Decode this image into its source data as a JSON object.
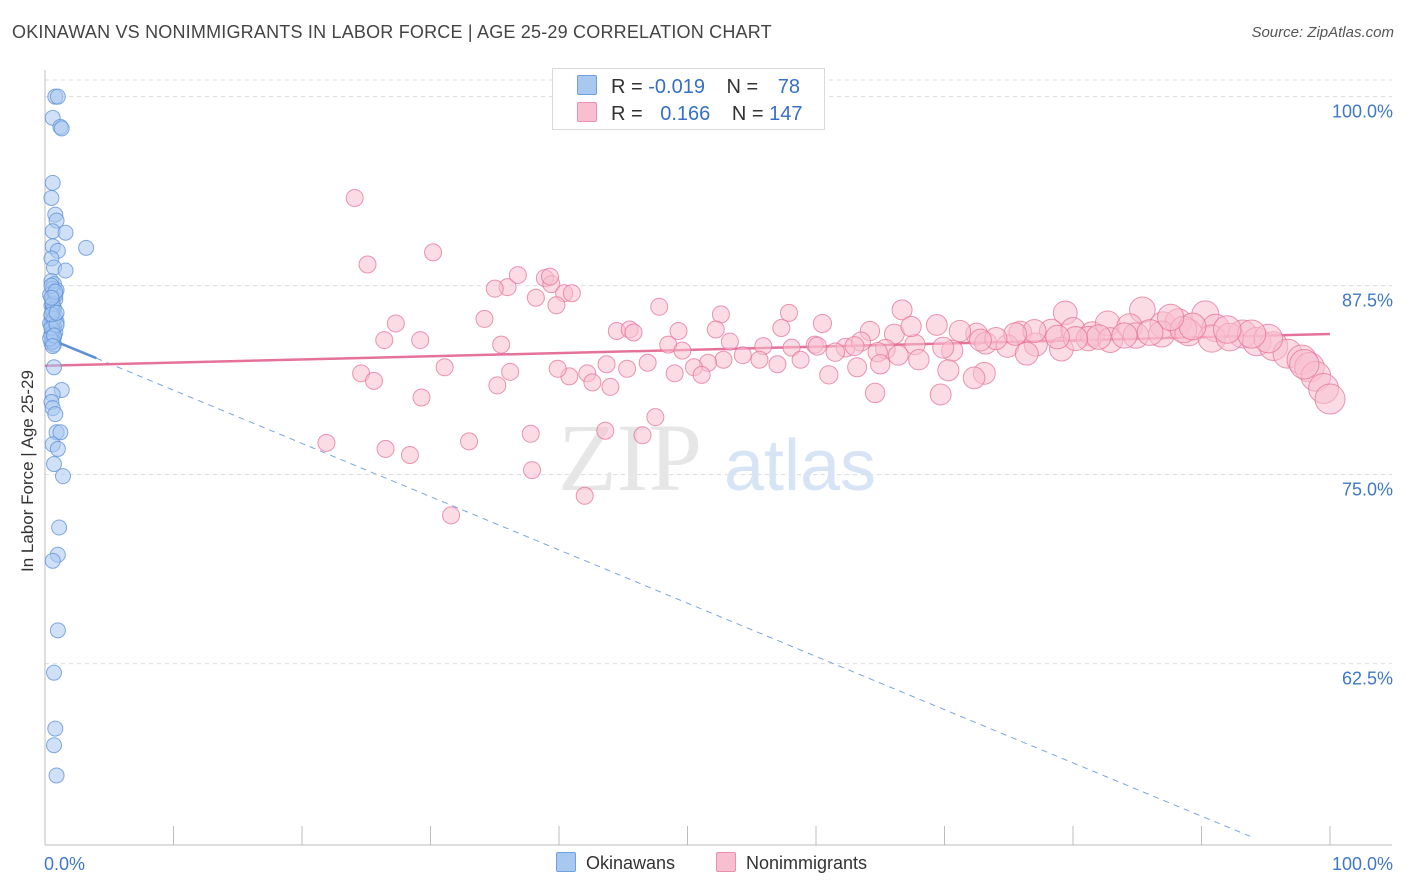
{
  "title": "OKINAWAN VS NONIMMIGRANTS IN LABOR FORCE | AGE 25-29 CORRELATION CHART",
  "source": "Source: ZipAtlas.com",
  "watermark": {
    "zip": "ZIP",
    "atlas": "atlas"
  },
  "legend_top": {
    "r_label": "R =",
    "n_label": "N =",
    "rows": [
      {
        "name": "Okinawans",
        "r": "-0.019",
        "n": "78",
        "color": "#a9c8f0",
        "border": "#6fa0e0"
      },
      {
        "name": "Nonimmigrants",
        "r": "0.166",
        "n": "147",
        "color": "#f7bfd0",
        "border": "#e890ad"
      }
    ]
  },
  "bottom_legend": [
    {
      "label": "Okinawans",
      "color": "#a9c8f0",
      "border": "#6fa0e0"
    },
    {
      "label": "Nonimmigrants",
      "color": "#f7bfd0",
      "border": "#e890ad"
    }
  ],
  "chart_data": {
    "type": "scatter",
    "title": "OKINAWAN VS NONIMMIGRANTS IN LABOR FORCE | AGE 25-29 CORRELATION CHART",
    "xlabel": "",
    "ylabel": "In Labor Force | Age 25-29",
    "xlim": [
      0,
      100
    ],
    "ylim": [
      50.5,
      101.5
    ],
    "x_tick_labels": [
      "0.0%",
      "100.0%"
    ],
    "y_ticks": [
      100.0,
      87.5,
      75.0,
      62.5
    ],
    "y_tick_labels": [
      "100.0%",
      "87.5%",
      "75.0%",
      "62.5%"
    ],
    "grid": true,
    "series": [
      {
        "name": "Okinawans",
        "color": "#5b8fd6",
        "fill": "#a9c8f0",
        "trend": {
          "type": "solid",
          "x": [
            0,
            4
          ],
          "y": [
            84.1,
            82.7
          ]
        },
        "trend_extension": {
          "type": "dashed",
          "x": [
            4,
            94
          ],
          "y": [
            82.7,
            51.0
          ]
        },
        "points": [
          [
            0.8,
            100.0
          ],
          [
            1.0,
            100.0
          ],
          [
            0.6,
            98.6
          ],
          [
            1.2,
            98.0
          ],
          [
            1.3,
            97.9
          ],
          [
            0.6,
            94.3
          ],
          [
            0.5,
            93.3
          ],
          [
            0.8,
            92.2
          ],
          [
            0.9,
            91.8
          ],
          [
            0.6,
            91.1
          ],
          [
            1.6,
            91.0
          ],
          [
            0.6,
            90.1
          ],
          [
            1.0,
            89.8
          ],
          [
            3.2,
            90.0
          ],
          [
            0.5,
            89.3
          ],
          [
            0.7,
            88.7
          ],
          [
            1.6,
            88.5
          ],
          [
            0.5,
            87.8
          ],
          [
            0.7,
            87.6
          ],
          [
            0.6,
            87.3
          ],
          [
            0.9,
            87.2
          ],
          [
            0.4,
            86.9
          ],
          [
            0.6,
            86.6
          ],
          [
            0.8,
            86.6
          ],
          [
            0.5,
            86.2
          ],
          [
            0.7,
            86.0
          ],
          [
            0.6,
            85.8
          ],
          [
            0.5,
            85.5
          ],
          [
            0.8,
            85.5
          ],
          [
            0.6,
            85.2
          ],
          [
            0.9,
            85.1
          ],
          [
            0.5,
            84.9
          ],
          [
            0.7,
            84.8
          ],
          [
            0.6,
            84.5
          ],
          [
            0.8,
            84.4
          ],
          [
            0.5,
            84.2
          ],
          [
            0.7,
            84.1
          ],
          [
            0.6,
            83.9
          ],
          [
            0.5,
            83.7
          ],
          [
            0.7,
            83.6
          ],
          [
            0.6,
            84.6
          ],
          [
            0.4,
            85.0
          ],
          [
            0.7,
            82.1
          ],
          [
            1.3,
            80.6
          ],
          [
            0.6,
            80.3
          ],
          [
            0.5,
            79.8
          ],
          [
            0.6,
            79.4
          ],
          [
            0.8,
            79.0
          ],
          [
            0.9,
            77.8
          ],
          [
            1.2,
            77.8
          ],
          [
            0.6,
            77.0
          ],
          [
            1.0,
            76.7
          ],
          [
            0.7,
            75.7
          ],
          [
            1.4,
            74.9
          ],
          [
            1.1,
            71.5
          ],
          [
            1.0,
            69.7
          ],
          [
            0.6,
            69.3
          ],
          [
            1.0,
            64.7
          ],
          [
            0.7,
            61.9
          ],
          [
            0.8,
            58.2
          ],
          [
            0.7,
            57.1
          ],
          [
            0.9,
            55.1
          ],
          [
            0.5,
            84.3
          ],
          [
            0.6,
            83.8
          ],
          [
            0.8,
            86.9
          ],
          [
            0.5,
            87.5
          ],
          [
            0.6,
            85.9
          ],
          [
            0.7,
            85.3
          ],
          [
            0.5,
            84.7
          ],
          [
            0.9,
            84.9
          ],
          [
            0.6,
            86.3
          ],
          [
            0.4,
            84.0
          ],
          [
            0.8,
            87.1
          ],
          [
            0.5,
            85.6
          ],
          [
            0.7,
            84.2
          ],
          [
            0.6,
            83.5
          ],
          [
            0.5,
            86.7
          ],
          [
            0.9,
            85.7
          ]
        ]
      },
      {
        "name": "Nonimmigrants",
        "color": "#e5729a",
        "fill": "#f7bfd0",
        "trend": {
          "type": "solid",
          "x": [
            0,
            100
          ],
          "y": [
            82.2,
            84.3
          ]
        },
        "points": [
          [
            24.1,
            93.3
          ],
          [
            25.1,
            88.9
          ],
          [
            30.2,
            89.7
          ],
          [
            36.0,
            87.4
          ],
          [
            36.8,
            88.2
          ],
          [
            38.9,
            88.0
          ],
          [
            39.4,
            87.6
          ],
          [
            40.4,
            87.0
          ],
          [
            41.0,
            87.0
          ],
          [
            35.0,
            87.3
          ],
          [
            38.2,
            86.7
          ],
          [
            39.8,
            86.2
          ],
          [
            47.8,
            86.1
          ],
          [
            52.6,
            85.6
          ],
          [
            57.9,
            85.7
          ],
          [
            66.7,
            85.9
          ],
          [
            79.4,
            85.7
          ],
          [
            85.4,
            85.9
          ],
          [
            90.3,
            85.6
          ],
          [
            27.3,
            85.0
          ],
          [
            34.2,
            85.3
          ],
          [
            44.5,
            84.5
          ],
          [
            45.5,
            84.6
          ],
          [
            49.3,
            84.5
          ],
          [
            52.2,
            84.6
          ],
          [
            57.3,
            84.7
          ],
          [
            60.5,
            85.0
          ],
          [
            64.2,
            84.5
          ],
          [
            66.1,
            84.3
          ],
          [
            69.4,
            84.9
          ],
          [
            72.5,
            84.3
          ],
          [
            75.9,
            84.4
          ],
          [
            78.3,
            84.5
          ],
          [
            80.0,
            84.6
          ],
          [
            81.5,
            84.3
          ],
          [
            82.7,
            85.0
          ],
          [
            84.4,
            84.8
          ],
          [
            87.0,
            84.9
          ],
          [
            88.2,
            85.1
          ],
          [
            89.0,
            84.4
          ],
          [
            91.1,
            84.7
          ],
          [
            93.2,
            84.3
          ],
          [
            26.4,
            83.9
          ],
          [
            29.2,
            83.9
          ],
          [
            35.5,
            83.6
          ],
          [
            48.5,
            83.6
          ],
          [
            49.6,
            83.2
          ],
          [
            53.3,
            83.8
          ],
          [
            55.9,
            83.5
          ],
          [
            58.1,
            83.4
          ],
          [
            59.9,
            83.6
          ],
          [
            62.3,
            83.4
          ],
          [
            63.5,
            83.8
          ],
          [
            65.4,
            83.3
          ],
          [
            67.7,
            83.6
          ],
          [
            70.6,
            83.2
          ],
          [
            73.2,
            83.7
          ],
          [
            74.9,
            83.5
          ],
          [
            77.1,
            83.6
          ],
          [
            79.1,
            83.3
          ],
          [
            81.2,
            84.0
          ],
          [
            82.9,
            83.9
          ],
          [
            84.9,
            84.2
          ],
          [
            86.9,
            84.3
          ],
          [
            88.6,
            84.6
          ],
          [
            90.8,
            84.0
          ],
          [
            92.2,
            84.1
          ],
          [
            94.3,
            83.8
          ],
          [
            95.6,
            83.5
          ],
          [
            96.7,
            83.0
          ],
          [
            97.8,
            82.6
          ],
          [
            98.4,
            82.1
          ],
          [
            98.9,
            81.5
          ],
          [
            99.5,
            80.7
          ],
          [
            100.0,
            80.0
          ],
          [
            98.0,
            82.3
          ],
          [
            95.2,
            84.0
          ],
          [
            93.9,
            84.3
          ],
          [
            92.0,
            84.6
          ],
          [
            89.3,
            84.8
          ],
          [
            87.6,
            85.4
          ],
          [
            86.0,
            84.4
          ],
          [
            84.0,
            84.2
          ],
          [
            82.0,
            84.1
          ],
          [
            80.2,
            84.0
          ],
          [
            78.8,
            84.1
          ],
          [
            77.0,
            84.5
          ],
          [
            75.5,
            84.3
          ],
          [
            74.0,
            84.0
          ],
          [
            72.8,
            83.9
          ],
          [
            71.2,
            84.5
          ],
          [
            69.9,
            83.4
          ],
          [
            68.0,
            82.6
          ],
          [
            66.4,
            82.9
          ],
          [
            64.8,
            83.1
          ],
          [
            63.0,
            83.5
          ],
          [
            61.5,
            83.1
          ],
          [
            60.1,
            83.5
          ],
          [
            58.8,
            82.6
          ],
          [
            57.0,
            82.3
          ],
          [
            55.6,
            82.6
          ],
          [
            54.3,
            82.9
          ],
          [
            52.8,
            82.6
          ],
          [
            51.6,
            82.4
          ],
          [
            50.5,
            82.1
          ],
          [
            49.0,
            81.7
          ],
          [
            46.9,
            82.4
          ],
          [
            45.3,
            82.0
          ],
          [
            43.7,
            82.3
          ],
          [
            42.2,
            81.7
          ],
          [
            40.8,
            81.5
          ],
          [
            39.9,
            82.0
          ],
          [
            36.2,
            81.8
          ],
          [
            31.1,
            82.1
          ],
          [
            24.6,
            81.7
          ],
          [
            25.6,
            81.2
          ],
          [
            35.2,
            80.9
          ],
          [
            42.6,
            81.1
          ],
          [
            44.0,
            80.8
          ],
          [
            51.1,
            81.6
          ],
          [
            61.0,
            81.6
          ],
          [
            63.2,
            82.1
          ],
          [
            65.0,
            82.3
          ],
          [
            70.3,
            81.9
          ],
          [
            73.1,
            81.7
          ],
          [
            29.3,
            80.1
          ],
          [
            64.6,
            80.4
          ],
          [
            69.7,
            80.3
          ],
          [
            47.5,
            78.8
          ],
          [
            43.6,
            77.9
          ],
          [
            37.8,
            77.7
          ],
          [
            46.5,
            77.6
          ],
          [
            21.9,
            77.1
          ],
          [
            26.5,
            76.7
          ],
          [
            28.4,
            76.3
          ],
          [
            33.0,
            77.2
          ],
          [
            37.9,
            75.3
          ],
          [
            31.6,
            72.3
          ],
          [
            42.0,
            73.6
          ],
          [
            72.3,
            81.4
          ],
          [
            76.4,
            83.0
          ],
          [
            67.4,
            84.8
          ],
          [
            45.8,
            84.4
          ],
          [
            39.3,
            88.1
          ]
        ]
      }
    ]
  }
}
